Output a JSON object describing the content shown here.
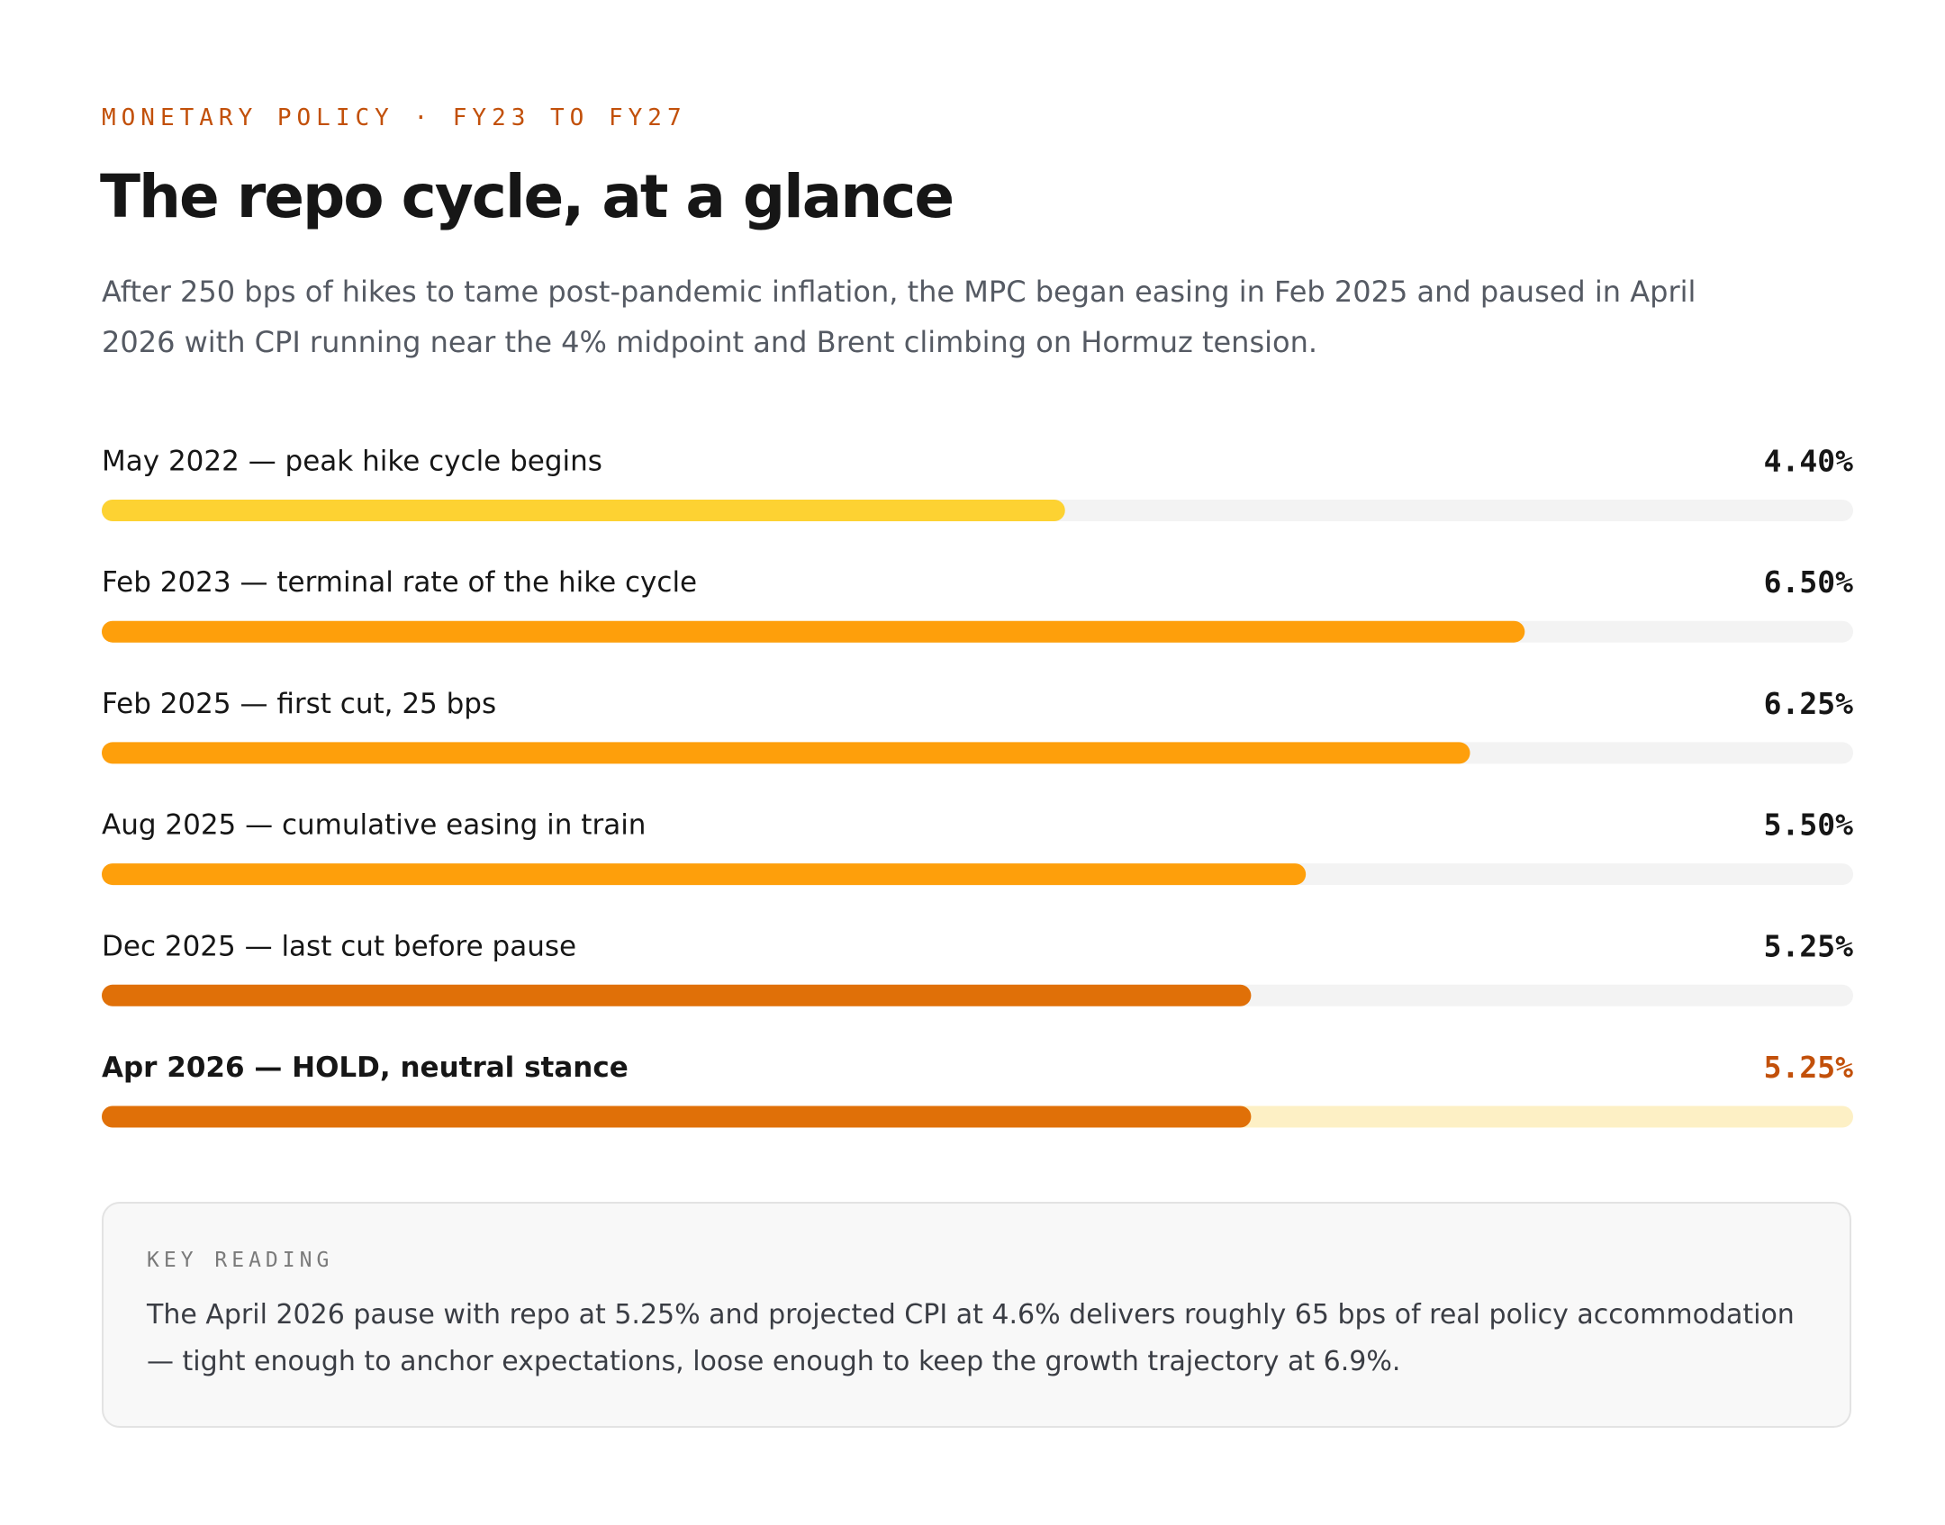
{
  "eyebrow": "MONETARY POLICY · FY23 TO FY27",
  "chart_data": {
    "type": "hbar",
    "title": "The repo cycle, at a glance",
    "subtitle": "After 250 bps of hikes to tame post-pandemic inflation, the MPC began easing in Feb 2025 and paused in April 2026 with CPI running near the 4% midpoint and Brent climbing on Hormuz tension.",
    "categories": [
      "May 2022 — peak hike cycle begins",
      "Feb 2023 — terminal rate of the hike cycle",
      "Feb 2025 — first cut, 25 bps",
      "Aug 2025 — cumulative easing in train",
      "Dec 2025 — last cut before pause",
      "Apr 2026 — HOLD, neutral stance"
    ],
    "values": [
      4.4,
      6.5,
      6.25,
      5.5,
      5.25,
      5.25
    ],
    "value_labels": [
      "4.40%",
      "6.50%",
      "6.25%",
      "5.50%",
      "5.25%",
      "5.25%"
    ],
    "colors": [
      "#fdd232",
      "#fe9f0b",
      "#fe9f0b",
      "#fe9f0b",
      "#e07008",
      "#e07008"
    ],
    "track_colors": [
      "#f3f3f3",
      "#f3f3f3",
      "#f3f3f3",
      "#f3f3f3",
      "#f3f3f3",
      "#fdf0c5"
    ],
    "value_label_colors": [
      "#161616",
      "#161616",
      "#161616",
      "#161616",
      "#161616",
      "#c2500a"
    ],
    "xlim": [
      0,
      8
    ]
  },
  "key_reading": {
    "label": "KEY READING",
    "text": "The April 2026 pause with repo at 5.25% and projected CPI at 4.6% delivers roughly 65 bps of real policy accommodation — tight enough to anchor expectations, loose enough to keep the growth trajectory at 6.9%."
  }
}
